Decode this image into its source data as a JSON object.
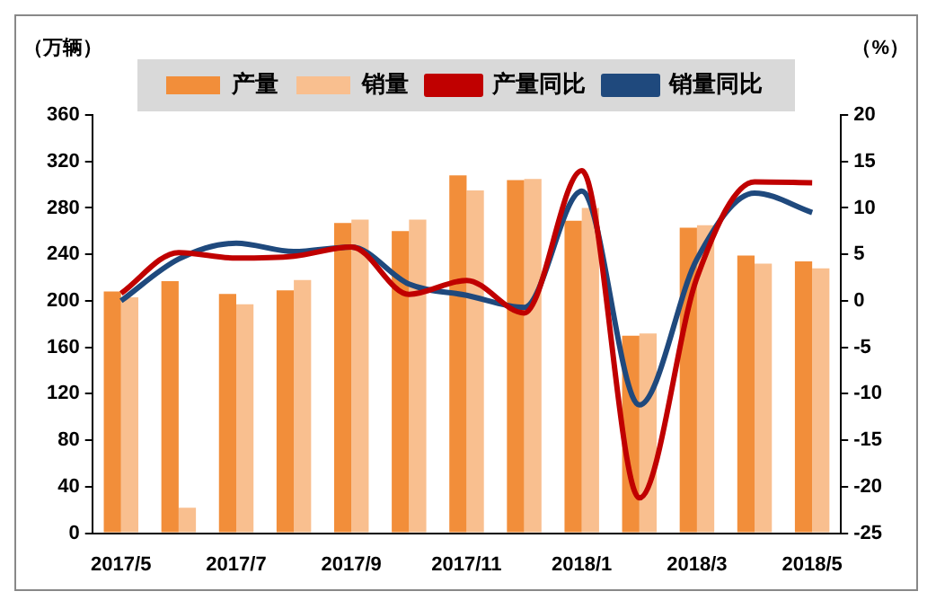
{
  "chart_data": {
    "type": "bar",
    "ylabel": "（万辆）",
    "y2label": "（%）",
    "categories": [
      "2017/5",
      null,
      "2017/7",
      null,
      "2017/9",
      null,
      "2017/11",
      null,
      "2018/1",
      null,
      "2018/3",
      null,
      "2018/5"
    ],
    "series": [
      {
        "name": "产量",
        "color": "#f28e3a",
        "values": [
          208,
          217,
          206,
          209,
          267,
          260,
          308,
          304,
          269,
          170,
          263,
          239,
          234
        ]
      },
      {
        "name": "销量",
        "color": "#f9bf8f",
        "values": [
          203,
          22,
          197,
          218,
          270,
          270,
          295,
          305,
          280,
          172,
          265,
          232,
          228
        ]
      },
      {
        "name": "产量同比",
        "type": "line",
        "axis": "y2",
        "color": "#c00000",
        "values": [
          0.8,
          5.2,
          4.6,
          4.8,
          5.8,
          0.7,
          2.2,
          -1.3,
          14.0,
          -21.2,
          2.5,
          12.8,
          12.7
        ]
      },
      {
        "name": "销量同比",
        "type": "line",
        "axis": "y2",
        "color": "#1f497d",
        "values": [
          0,
          4.5,
          6.2,
          5.3,
          5.8,
          1.8,
          0.6,
          -0.7,
          11.8,
          -11.2,
          4.5,
          11.6,
          9.5
        ]
      }
    ],
    "ylim": [
      0,
      360
    ],
    "yticks": [
      0,
      40,
      80,
      120,
      160,
      200,
      240,
      280,
      320,
      360
    ],
    "y2lim": [
      -25,
      20
    ],
    "y2ticks": [
      -25,
      -20,
      -15,
      -10,
      -5,
      0,
      5,
      10,
      15,
      20
    ],
    "grid": false,
    "legend": "top",
    "line_style": "solid",
    "marker": "none"
  }
}
